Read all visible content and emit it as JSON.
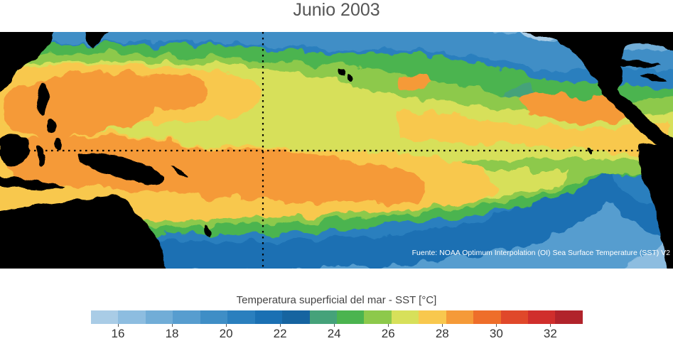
{
  "title": "Junio 2003",
  "credit": "Fuente: NOAA Optimum Interpolation (OI) Sea Surface Temperature (SST) V2",
  "legend": {
    "title": "Temperatura superficial del mar - SST  [°C]",
    "min": 15,
    "max": 33.2,
    "tick_labels": [
      "16",
      "18",
      "20",
      "22",
      "24",
      "26",
      "28",
      "30",
      "32"
    ],
    "tick_values": [
      16,
      18,
      20,
      22,
      24,
      26,
      28,
      30,
      32
    ],
    "colors": [
      "#a9cce6",
      "#8dbde0",
      "#71add7",
      "#579dcf",
      "#3f8ec6",
      "#2a7fbe",
      "#1a70b3",
      "#1664a0",
      "#45a27a",
      "#4bb44f",
      "#8dc94b",
      "#d7e05a",
      "#f8c84e",
      "#f59a38",
      "#ee6e2a",
      "#e0482a",
      "#d02e2c",
      "#b1232b"
    ]
  },
  "map": {
    "land_color": "#000000",
    "reference_lines": [
      "dateline",
      "equator"
    ]
  }
}
